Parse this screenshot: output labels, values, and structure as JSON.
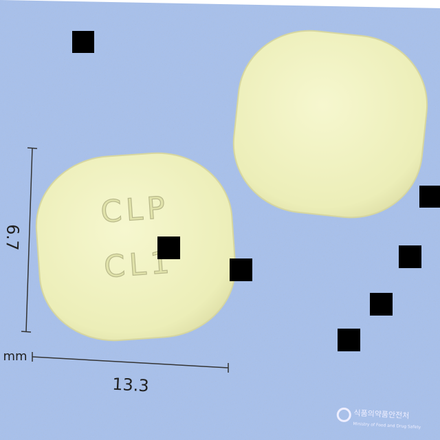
{
  "image": {
    "imprint": [
      "CLP",
      "CL1"
    ],
    "dimensions": {
      "height_label": "6.7",
      "width_label": "13.3",
      "unit": "mm"
    },
    "logo": {
      "korean": "식품의약품안전처",
      "english": "Ministry of Food and Drug Safety"
    }
  }
}
